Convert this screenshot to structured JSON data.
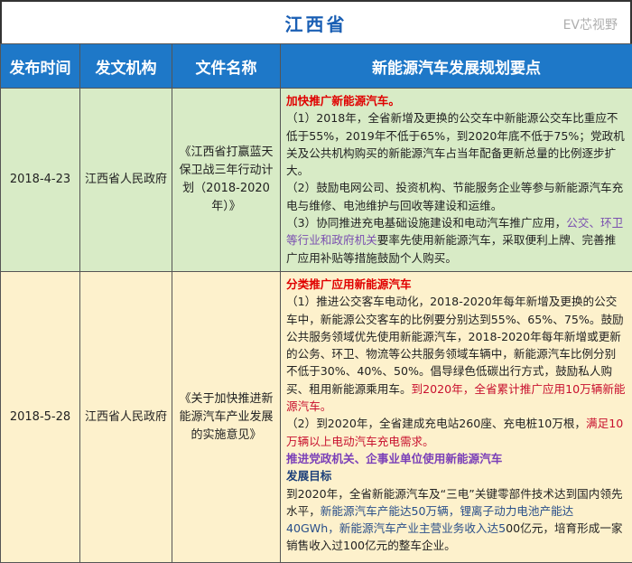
{
  "title": "江西省",
  "headers": [
    "发布时间",
    "发文机构",
    "文件名称",
    "新能源汽车发展规划要点"
  ],
  "rows": [
    {
      "date": "2018-4-23",
      "org": "江西省人民政府",
      "doc": "《江西省打赢蓝天保卫战三年行动计划（2018-2020年）》",
      "p": [
        "加快推广新能源汽车。",
        "（1）2018年，全省新增及更换的公交车中新能源公交车比重应不低于55%，2019年不低于65%，到2020年底不低于75%；党政机关及公共机构购买的新能源汽车占当年配备更新总量的比例逐步扩大。",
        "（2）鼓励电网公司、投资机构、节能服务企业等参与新能源汽车充电与维修、电池维护与回收等建设和运维。",
        "（3）协同推进充电基础设施建设和电动汽车推广应用，",
        "公交、环卫等行业和政府机关",
        "要率先使用新能源汽车，采取便利上牌、完善推广应用补贴等措施鼓励个人购买。"
      ]
    },
    {
      "date": "2018-5-28",
      "org": "江西省人民政府",
      "doc": "《关于加快推进新能源汽车产业发展的实施意见》",
      "p": [
        "分类推广应用新能源汽车",
        "（1）推进公交客车电动化，2018-2020年每年新增及更换的公交车中，新能源公交客车的比例要分别达到55%、65%、75%。鼓励公共服务领域优先使用新能源汽车，2018-2020年每年新增或更新的公务、环卫、物流等公共服务领域车辆中，新能源汽车比例分别不低于30%、40%、50%。倡导绿色低碳出行方式，鼓励私人购买、租用新能源乘用车。",
        "到2020年，全省累计推广应用10万辆新能源汽车。",
        "（2）到2020年，全省建成充电站260座、充电桩10万根，",
        "满足10万辆以上电动汽车充电需求。",
        "推进党政机关、企事业单位使用新能源汽车",
        "发展目标",
        "到2020年，全省新能源汽车及“三电”关键零部件技术达到国内领先水平，",
        "新能源汽车产能达50万辆，锂离子动力电池产能达40GWh，新能源汽车产业主营业务收入达5",
        "00亿元，培育形成一家销售收入过100亿元的整车企业。"
      ]
    }
  ],
  "watermark": "EV芯视野"
}
